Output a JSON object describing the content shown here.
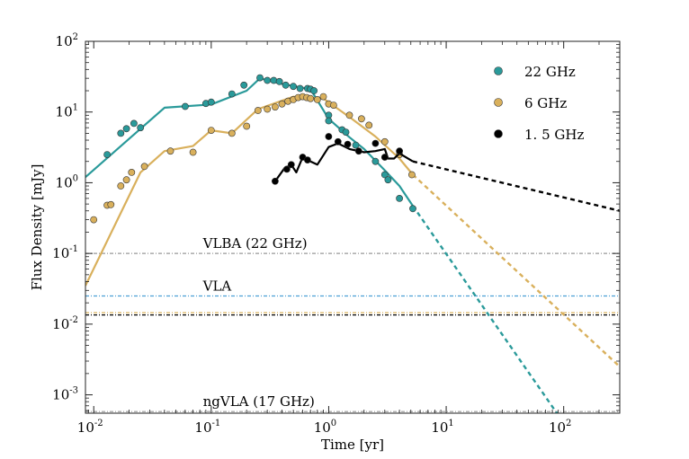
{
  "chart_data": {
    "type": "line",
    "xscale": "log",
    "yscale": "log",
    "xlabel": "Time [yr]",
    "ylabel": "Flux Density [mJy]",
    "xlim": [
      0.0085,
      300
    ],
    "ylim": [
      0.00055,
      100
    ],
    "x_ticks": [
      {
        "base": "10",
        "exp": "-2",
        "value": 0.01
      },
      {
        "base": "10",
        "exp": "-1",
        "value": 0.1
      },
      {
        "base": "10",
        "exp": "0",
        "value": 1
      },
      {
        "base": "10",
        "exp": "1",
        "value": 10
      },
      {
        "base": "10",
        "exp": "2",
        "value": 100
      }
    ],
    "y_ticks": [
      {
        "base": "10",
        "exp": "-3",
        "value": 0.001
      },
      {
        "base": "10",
        "exp": "-2",
        "value": 0.01
      },
      {
        "base": "10",
        "exp": "-1",
        "value": 0.1
      },
      {
        "base": "10",
        "exp": "0",
        "value": 1
      },
      {
        "base": "10",
        "exp": "1",
        "value": 10
      },
      {
        "base": "10",
        "exp": "2",
        "value": 100
      }
    ],
    "legend_position": "top-right",
    "series": [
      {
        "name": "22 GHz",
        "color": "#2a9a9a",
        "points": [
          [
            0.013,
            2.5
          ],
          [
            0.017,
            5.0
          ],
          [
            0.019,
            5.8
          ],
          [
            0.022,
            6.9
          ],
          [
            0.025,
            6.0
          ],
          [
            0.06,
            12.0
          ],
          [
            0.09,
            13.2
          ],
          [
            0.1,
            13.8
          ],
          [
            0.15,
            18.0
          ],
          [
            0.19,
            24.0
          ],
          [
            0.26,
            30.5
          ],
          [
            0.3,
            28.0
          ],
          [
            0.34,
            28.0
          ],
          [
            0.38,
            27.0
          ],
          [
            0.43,
            24.0
          ],
          [
            0.5,
            23.0
          ],
          [
            0.57,
            21.5
          ],
          [
            0.66,
            21.5
          ],
          [
            0.7,
            21.0
          ],
          [
            0.75,
            20.0
          ],
          [
            1.0,
            9.0
          ],
          [
            1.0,
            7.5
          ],
          [
            1.3,
            5.6
          ],
          [
            1.4,
            5.2
          ],
          [
            1.7,
            3.4
          ],
          [
            2.5,
            2.0
          ],
          [
            3.0,
            1.3
          ],
          [
            3.2,
            1.1
          ],
          [
            4.0,
            0.6
          ],
          [
            5.2,
            0.43
          ]
        ],
        "fit": [
          [
            0.0085,
            1.2
          ],
          [
            0.04,
            11.5
          ],
          [
            0.1,
            12.8
          ],
          [
            0.2,
            20.0
          ],
          [
            0.26,
            30.0
          ],
          [
            0.4,
            25.0
          ],
          [
            0.7,
            21.0
          ],
          [
            1.0,
            8.0
          ],
          [
            1.5,
            4.4
          ],
          [
            2.0,
            3.0
          ],
          [
            3.0,
            1.5
          ],
          [
            4.0,
            0.9
          ],
          [
            5.2,
            0.47
          ]
        ],
        "extrapolation": [
          [
            5.2,
            0.47
          ],
          [
            100,
            0.0004
          ]
        ]
      },
      {
        "name": "6 GHz",
        "color": "#d9b05c",
        "points": [
          [
            0.01,
            0.3
          ],
          [
            0.013,
            0.48
          ],
          [
            0.014,
            0.49
          ],
          [
            0.017,
            0.9
          ],
          [
            0.019,
            1.1
          ],
          [
            0.021,
            1.4
          ],
          [
            0.027,
            1.7
          ],
          [
            0.045,
            2.8
          ],
          [
            0.07,
            2.7
          ],
          [
            0.1,
            5.5
          ],
          [
            0.15,
            5.0
          ],
          [
            0.2,
            6.3
          ],
          [
            0.25,
            10.5
          ],
          [
            0.3,
            11.0
          ],
          [
            0.35,
            11.8
          ],
          [
            0.4,
            13.0
          ],
          [
            0.45,
            14.2
          ],
          [
            0.5,
            15.0
          ],
          [
            0.55,
            16.0
          ],
          [
            0.6,
            16.5
          ],
          [
            0.65,
            16.0
          ],
          [
            0.7,
            15.5
          ],
          [
            0.8,
            15.0
          ],
          [
            0.9,
            16.5
          ],
          [
            1.0,
            13.0
          ],
          [
            1.1,
            12.5
          ],
          [
            1.5,
            9.0
          ],
          [
            1.9,
            8.0
          ],
          [
            2.2,
            6.5
          ],
          [
            3.0,
            3.8
          ],
          [
            4.0,
            2.5
          ],
          [
            5.1,
            1.3
          ]
        ],
        "fit": [
          [
            0.0085,
            0.035
          ],
          [
            0.025,
            1.4
          ],
          [
            0.04,
            2.8
          ],
          [
            0.07,
            3.3
          ],
          [
            0.1,
            5.5
          ],
          [
            0.15,
            5.0
          ],
          [
            0.25,
            11.0
          ],
          [
            0.5,
            16.5
          ],
          [
            0.9,
            15.5
          ],
          [
            1.5,
            8.5
          ],
          [
            2.5,
            4.5
          ],
          [
            4.0,
            2.2
          ],
          [
            5.2,
            1.3
          ]
        ],
        "extrapolation": [
          [
            5.2,
            1.3
          ],
          [
            300,
            0.0025
          ]
        ]
      },
      {
        "name": "1. 5 GHz",
        "color": "#000000",
        "points": [
          [
            0.35,
            1.05
          ],
          [
            0.44,
            1.55
          ],
          [
            0.48,
            1.8
          ],
          [
            0.6,
            2.3
          ],
          [
            0.66,
            2.1
          ],
          [
            1.0,
            4.5
          ],
          [
            1.2,
            3.8
          ],
          [
            1.45,
            3.5
          ],
          [
            1.8,
            2.8
          ],
          [
            2.5,
            3.6
          ],
          [
            3.0,
            2.3
          ],
          [
            4.0,
            2.8
          ]
        ],
        "fit": [
          [
            0.35,
            1.05
          ],
          [
            0.42,
            1.6
          ],
          [
            0.48,
            1.8
          ],
          [
            0.53,
            1.4
          ],
          [
            0.6,
            2.3
          ],
          [
            0.7,
            2.0
          ],
          [
            0.8,
            1.8
          ],
          [
            1.0,
            3.2
          ],
          [
            1.2,
            3.6
          ],
          [
            1.5,
            3.0
          ],
          [
            2.0,
            2.7
          ],
          [
            2.5,
            2.8
          ],
          [
            3.0,
            3.0
          ],
          [
            3.2,
            2.2
          ],
          [
            3.6,
            2.2
          ],
          [
            4.0,
            2.6
          ],
          [
            5.2,
            2.0
          ]
        ],
        "extrapolation": [
          [
            5.2,
            2.0
          ],
          [
            300,
            0.4
          ]
        ]
      }
    ],
    "reference_lines": [
      {
        "label": "VLBA (22 GHz)",
        "value": 0.1,
        "color": "#999999",
        "label_x": 0.085
      },
      {
        "label": "VLA",
        "value": 0.025,
        "color": "#4a9fd4",
        "label_x": 0.085
      },
      {
        "label": "",
        "value": 0.0145,
        "color": "#d9b05c",
        "label_x": null
      },
      {
        "label": "",
        "value": 0.0135,
        "color": "#000000",
        "label_x": null
      },
      {
        "label": "ngVLA (17 GHz)",
        "value": 0.00058,
        "color": "#999999",
        "label_x": 0.085
      }
    ]
  }
}
